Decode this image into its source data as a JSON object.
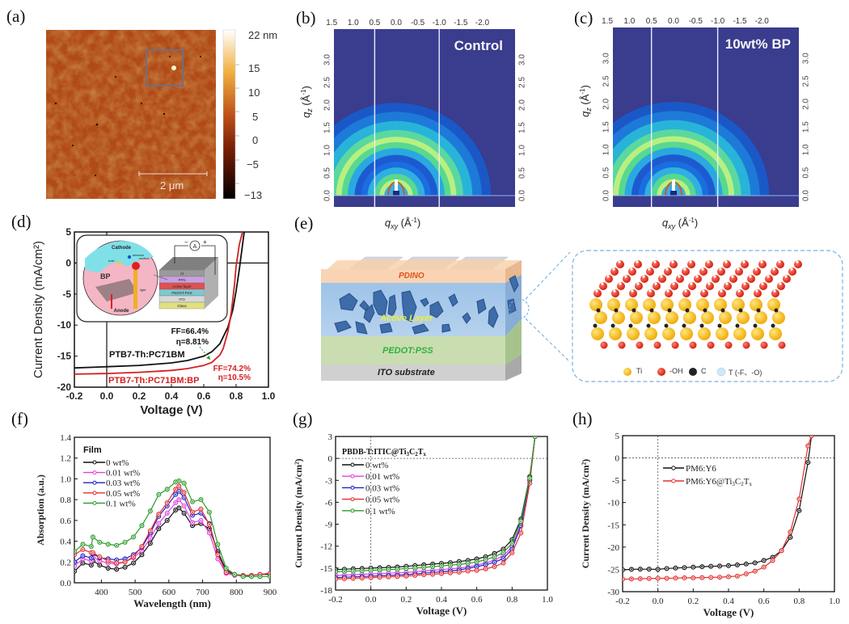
{
  "panels": {
    "a": {
      "label": "(a)"
    },
    "b": {
      "label": "(b)"
    },
    "c": {
      "label": "(c)"
    },
    "d": {
      "label": "(d)"
    },
    "e": {
      "label": "(e)"
    },
    "f": {
      "label": "(f)"
    },
    "g": {
      "label": "(g)"
    },
    "h": {
      "label": "(h)"
    }
  },
  "afm": {
    "colorbar_ticks": [
      "22 nm",
      "15",
      "10",
      "5",
      "0",
      "−5",
      "−13"
    ],
    "scale_bar": "2 μm"
  },
  "giwaxs": {
    "x_ticks": [
      "1.5",
      "1.0",
      "0.5",
      "0.0",
      "-0.5",
      "-1.0",
      "-1.5",
      "-2.0"
    ],
    "y_ticks": [
      "0.0",
      "0.5",
      "1.0",
      "1.5",
      "2.0",
      "2.5",
      "3.0"
    ],
    "ylabel": "q_z (Å⁻¹)",
    "xlabel": "q_xy (Å⁻¹)",
    "ylabel_main": "q",
    "ylabel_sub": "z",
    "ylabel_unit": "(Å",
    "ylabel_sup": "-1",
    "xlabel_main": "q",
    "xlabel_sub": "xy",
    "unit_open": "(Å",
    "unit_sup": "-1",
    "unit_close": ")",
    "b_title": "Control",
    "c_title": "10wt% BP"
  },
  "device_e": {
    "layers": [
      "PDINO",
      "Active Layer",
      "PEDOT:PSS",
      "ITO substrate"
    ],
    "legend": [
      "Ti",
      "-OH",
      "C",
      "T (-F、-O)"
    ]
  },
  "inset_d": {
    "cathode": "Cathode",
    "anode": "Anode",
    "bp": "BP",
    "electron": "electron",
    "hole": "hole",
    "exciton": "exciton",
    "light": "light",
    "ammeter": "A",
    "minus": "−",
    "plus": "+",
    "stack": [
      "Al",
      "PFN",
      "Active layer",
      "PEDOT:PSS",
      "ITO",
      "Glass"
    ]
  },
  "chart_data": [
    {
      "id": "d",
      "type": "line",
      "title": "",
      "xlabel": "Voltage (V)",
      "ylabel": "Current Density (mA/cm²)",
      "xlim": [
        -0.2,
        1.0
      ],
      "ylim": [
        -20,
        5
      ],
      "x_ticks": [
        "-0.2",
        "0.0",
        "0.2",
        "0.4",
        "0.6",
        "0.8",
        "1.0"
      ],
      "y_ticks": [
        "-20",
        "-15",
        "-10",
        "-5",
        "0",
        "5"
      ],
      "series": [
        {
          "name": "PTB7-Th:PC71BM",
          "color": "#111111",
          "x": [
            -0.2,
            0.0,
            0.2,
            0.4,
            0.5,
            0.6,
            0.65,
            0.7,
            0.75,
            0.78,
            0.8,
            0.82,
            0.84,
            0.85
          ],
          "y": [
            -16.9,
            -16.7,
            -16.5,
            -16.1,
            -15.7,
            -15.0,
            -14.3,
            -13.0,
            -10.3,
            -7.5,
            -4.5,
            -1.0,
            3.0,
            5.0
          ]
        },
        {
          "name": "PTB7-Th:PC71BM:BP",
          "color": "#d42020",
          "x": [
            -0.2,
            0.0,
            0.2,
            0.4,
            0.5,
            0.6,
            0.65,
            0.7,
            0.72,
            0.75,
            0.77,
            0.79,
            0.8,
            0.82,
            0.84
          ],
          "y": [
            -17.9,
            -17.8,
            -17.6,
            -17.3,
            -17.0,
            -16.5,
            -16.0,
            -14.8,
            -13.8,
            -11.0,
            -8.0,
            -3.5,
            -0.5,
            3.0,
            5.0
          ]
        }
      ],
      "annotations": [
        {
          "text": "FF=66.4%",
          "color": "#111111"
        },
        {
          "text": "η=8.81%",
          "color": "#111111"
        },
        {
          "text": "FF=74.2%",
          "color": "#d42020"
        },
        {
          "text": "η=10.5%",
          "color": "#d42020"
        }
      ]
    },
    {
      "id": "f",
      "type": "line",
      "title": "",
      "legend_title": "Film",
      "xlabel": "Wavelength (nm)",
      "ylabel": "Absorption (a.u.)",
      "xlim": [
        320,
        900
      ],
      "ylim": [
        0.0,
        1.4
      ],
      "x_ticks": [
        "400",
        "500",
        "600",
        "700",
        "800",
        "900"
      ],
      "y_ticks": [
        "0.0",
        "0.2",
        "0.4",
        "0.6",
        "0.8",
        "1.0",
        "1.2",
        "1.4"
      ],
      "x": [
        320,
        345,
        370,
        375,
        395,
        420,
        445,
        470,
        495,
        520,
        545,
        570,
        595,
        620,
        630,
        645,
        670,
        695,
        720,
        745,
        770,
        795,
        820,
        845,
        870,
        900
      ],
      "series": [
        {
          "name": "0 wt%",
          "color": "#111111",
          "values": [
            0.11,
            0.19,
            0.17,
            0.21,
            0.17,
            0.14,
            0.13,
            0.15,
            0.19,
            0.27,
            0.38,
            0.52,
            0.6,
            0.7,
            0.72,
            0.67,
            0.55,
            0.57,
            0.52,
            0.3,
            0.12,
            0.08,
            0.07,
            0.07,
            0.08,
            0.08
          ]
        },
        {
          "name": "0.01 wt%",
          "color": "#e040e0",
          "values": [
            0.16,
            0.23,
            0.21,
            0.25,
            0.21,
            0.19,
            0.18,
            0.2,
            0.24,
            0.31,
            0.43,
            0.57,
            0.67,
            0.77,
            0.8,
            0.74,
            0.58,
            0.6,
            0.48,
            0.23,
            0.09,
            0.07,
            0.07,
            0.07,
            0.08,
            0.09
          ]
        },
        {
          "name": "0.03 wt%",
          "color": "#2020c8",
          "values": [
            0.2,
            0.26,
            0.24,
            0.28,
            0.24,
            0.23,
            0.22,
            0.23,
            0.27,
            0.34,
            0.48,
            0.64,
            0.74,
            0.85,
            0.88,
            0.82,
            0.65,
            0.67,
            0.57,
            0.28,
            0.1,
            0.08,
            0.07,
            0.07,
            0.08,
            0.09
          ]
        },
        {
          "name": "0.05 wt%",
          "color": "#e03030",
          "values": [
            0.27,
            0.32,
            0.29,
            0.29,
            0.25,
            0.21,
            0.19,
            0.2,
            0.25,
            0.35,
            0.5,
            0.66,
            0.77,
            0.9,
            0.93,
            0.87,
            0.68,
            0.71,
            0.56,
            0.27,
            0.1,
            0.08,
            0.07,
            0.07,
            0.08,
            0.09
          ]
        },
        {
          "name": "0.1 wt%",
          "color": "#2a9a2a",
          "values": [
            0.3,
            0.37,
            0.35,
            0.44,
            0.39,
            0.37,
            0.36,
            0.39,
            0.44,
            0.55,
            0.69,
            0.85,
            0.9,
            0.97,
            0.98,
            0.96,
            0.78,
            0.8,
            0.68,
            0.37,
            0.14,
            0.08,
            0.06,
            0.06,
            0.06,
            0.06
          ]
        }
      ]
    },
    {
      "id": "g",
      "type": "line",
      "title": "",
      "legend_title": "PBDB-T:ITIC@Ti3C2Tx",
      "legend_title_parts": {
        "a": "PBDB-T:ITIC@Ti",
        "s1": "3",
        "b": "C",
        "s2": "2",
        "c": "T",
        "s3": "x"
      },
      "xlabel": "Voltage (V)",
      "ylabel": "Current Density (mA/cm²)",
      "xlim": [
        -0.2,
        1.0
      ],
      "ylim": [
        -18,
        3
      ],
      "x_ticks": [
        "-0.2",
        "0.0",
        "0.2",
        "0.4",
        "0.6",
        "0.8",
        "1.0"
      ],
      "y_ticks": [
        "-18",
        "-15",
        "-12",
        "-9",
        "-6",
        "-3",
        "0",
        "3"
      ],
      "x": [
        -0.2,
        -0.15,
        -0.1,
        -0.05,
        0.0,
        0.05,
        0.1,
        0.15,
        0.2,
        0.25,
        0.3,
        0.35,
        0.4,
        0.45,
        0.5,
        0.55,
        0.6,
        0.65,
        0.7,
        0.75,
        0.8,
        0.85,
        0.9,
        0.93
      ],
      "series": [
        {
          "name": "0 wt%",
          "color": "#111111",
          "values": [
            -15.2,
            -15.15,
            -15.1,
            -15.05,
            -15.0,
            -14.95,
            -14.9,
            -14.85,
            -14.75,
            -14.65,
            -14.55,
            -14.45,
            -14.35,
            -14.25,
            -14.1,
            -13.95,
            -13.75,
            -13.45,
            -13.0,
            -12.4,
            -11.1,
            -8.3,
            -2.5,
            3.0
          ]
        },
        {
          "name": "0.01 wt%",
          "color": "#e040e0",
          "values": [
            -16.0,
            -15.95,
            -15.9,
            -15.85,
            -15.8,
            -15.75,
            -15.7,
            -15.65,
            -15.6,
            -15.5,
            -15.4,
            -15.3,
            -15.2,
            -15.1,
            -15.0,
            -14.85,
            -14.6,
            -14.3,
            -13.9,
            -13.3,
            -12.1,
            -9.0,
            -2.8,
            3.0
          ]
        },
        {
          "name": "0.03 wt%",
          "color": "#2020c8",
          "values": [
            -16.3,
            -16.25,
            -16.2,
            -16.15,
            -16.1,
            -16.05,
            -16.0,
            -15.95,
            -15.9,
            -15.8,
            -15.7,
            -15.6,
            -15.5,
            -15.4,
            -15.25,
            -15.05,
            -14.8,
            -14.55,
            -14.2,
            -13.7,
            -12.4,
            -9.2,
            -3.0,
            3.0
          ]
        },
        {
          "name": "0.05 wt%",
          "color": "#e03030",
          "values": [
            -16.5,
            -16.45,
            -16.4,
            -16.35,
            -16.3,
            -16.25,
            -16.2,
            -16.15,
            -16.1,
            -16.0,
            -15.9,
            -15.85,
            -15.75,
            -15.65,
            -15.55,
            -15.4,
            -15.3,
            -15.1,
            -14.8,
            -14.3,
            -12.9,
            -10.2,
            -3.4,
            3.0
          ]
        },
        {
          "name": "0.1 wt%",
          "color": "#2a9a2a",
          "values": [
            -15.5,
            -15.45,
            -15.4,
            -15.35,
            -15.3,
            -15.25,
            -15.2,
            -15.15,
            -15.05,
            -15.0,
            -14.9,
            -14.8,
            -14.7,
            -14.6,
            -14.5,
            -14.35,
            -14.15,
            -13.85,
            -13.45,
            -12.9,
            -11.6,
            -8.6,
            -2.7,
            3.0
          ]
        }
      ]
    },
    {
      "id": "h",
      "type": "line",
      "title": "",
      "xlabel": "Voltage (V)",
      "ylabel": "Current Density (mA/cm²)",
      "xlim": [
        -0.2,
        1.0
      ],
      "ylim": [
        -30,
        5
      ],
      "x_ticks": [
        "-0.2",
        "0.0",
        "0.2",
        "0.4",
        "0.6",
        "0.8",
        "1.0"
      ],
      "y_ticks": [
        "-30",
        "-25",
        "-20",
        "-15",
        "-10",
        "-5",
        "0",
        "5"
      ],
      "x": [
        -0.2,
        -0.15,
        -0.1,
        -0.05,
        0.0,
        0.05,
        0.1,
        0.15,
        0.2,
        0.25,
        0.3,
        0.35,
        0.4,
        0.45,
        0.5,
        0.55,
        0.6,
        0.65,
        0.7,
        0.75,
        0.8,
        0.85,
        0.87
      ],
      "series": [
        {
          "name": "PM6:Y6",
          "legend_parts": {
            "a": "PM6:Y6"
          },
          "color": "#111111",
          "values": [
            -25.1,
            -25.0,
            -24.95,
            -24.95,
            -25.0,
            -24.8,
            -24.7,
            -24.6,
            -24.5,
            -24.4,
            -24.3,
            -24.25,
            -24.15,
            -24.0,
            -23.8,
            -23.55,
            -23.0,
            -22.3,
            -20.8,
            -17.8,
            -11.8,
            -1.0,
            5.0
          ]
        },
        {
          "name": "PM6:Y6@Ti3C2Tx",
          "legend_parts": {
            "a": "PM6:Y6@Ti",
            "s1": "3",
            "b": "C",
            "s2": "2",
            "c": "T",
            "s3": "x"
          },
          "color": "#e03030",
          "values": [
            -27.2,
            -27.15,
            -27.1,
            -27.05,
            -27.0,
            -27.0,
            -26.95,
            -26.9,
            -26.9,
            -26.85,
            -26.8,
            -26.75,
            -26.65,
            -26.5,
            -26.0,
            -25.4,
            -24.5,
            -23.0,
            -20.8,
            -16.6,
            -9.2,
            2.7,
            5.0
          ]
        }
      ]
    }
  ]
}
